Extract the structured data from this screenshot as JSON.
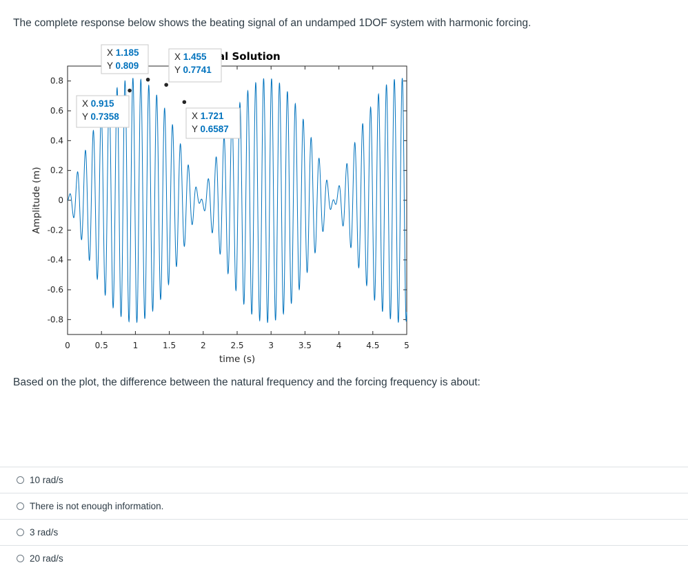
{
  "question": {
    "intro": "The complete response below shows the beating signal of an undamped 1DOF system with harmonic forcing.",
    "prompt": "Based on the plot, the difference between the natural frequency and the forcing frequency is about:"
  },
  "answers": [
    {
      "label": "10 rad/s",
      "selected": false
    },
    {
      "label": "There is not enough information.",
      "selected": false
    },
    {
      "label": "3 rad/s",
      "selected": false
    },
    {
      "label": "20 rad/s",
      "selected": false
    }
  ],
  "chart_data": {
    "type": "line",
    "title": "al Solution",
    "xlabel": "time (s)",
    "ylabel": "Amplitude (m)",
    "xlim": [
      0,
      5
    ],
    "ylim": [
      -0.9,
      0.9
    ],
    "xticks": [
      "0",
      "0.5",
      "1",
      "1.5",
      "2",
      "2.5",
      "3",
      "3.5",
      "4",
      "4.5",
      "5"
    ],
    "yticks": [
      "0.8",
      "0.6",
      "0.4",
      "0.2",
      "0",
      "-0.2",
      "-0.4",
      "-0.6",
      "-0.8"
    ],
    "ytick_values": [
      0.8,
      0.6,
      0.4,
      0.2,
      0,
      -0.2,
      -0.4,
      -0.6,
      -0.8
    ],
    "grid": false,
    "line_color": "#0072bd",
    "series_formula": "y = 0.82 * sin(0.5*(wn-w)*t) * sin(0.5*(wn+w)*t)",
    "series_params": {
      "wn": 55.4,
      "w": 52.2
    },
    "datatips": [
      {
        "x_label": "X",
        "x": "1.185",
        "y_label": "Y",
        "y": "0.809",
        "px": 1.185,
        "py": 0.809
      },
      {
        "x_label": "X",
        "x": "1.455",
        "y_label": "Y",
        "y": "0.7741",
        "px": 1.455,
        "py": 0.7741
      },
      {
        "x_label": "X",
        "x": "0.915",
        "y_label": "Y",
        "y": "0.7358",
        "px": 0.915,
        "py": 0.7358
      },
      {
        "x_label": "X",
        "x": "1.721",
        "y_label": "Y",
        "y": "0.6587",
        "px": 1.721,
        "py": 0.6587
      }
    ]
  }
}
